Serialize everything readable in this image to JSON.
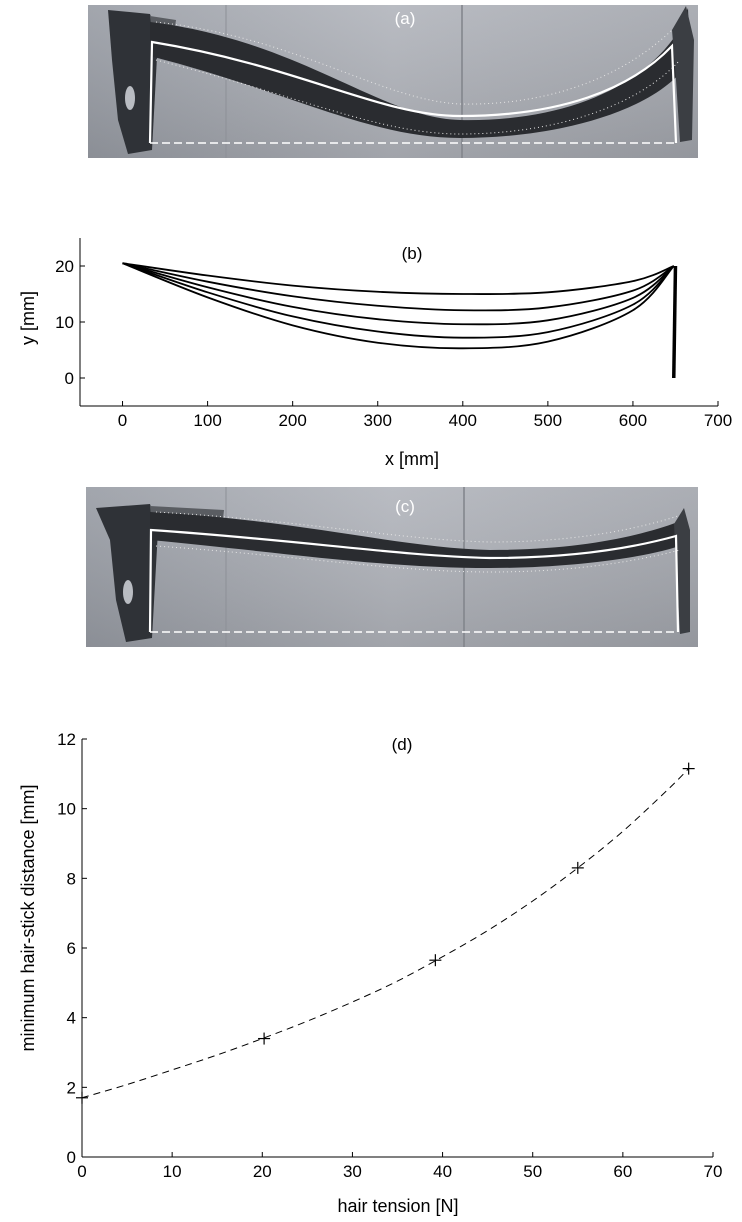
{
  "panels": {
    "a": {
      "label": "(a)"
    },
    "c": {
      "label": "(c)"
    }
  },
  "chart_data": [
    {
      "id": "b",
      "type": "line",
      "title": "(b)",
      "xlabel": "x [mm]",
      "ylabel": "y [mm]",
      "xlim": [
        -50,
        700
      ],
      "ylim": [
        -5,
        25
      ],
      "xticks": [
        0,
        100,
        200,
        300,
        400,
        500,
        600,
        700
      ],
      "yticks": [
        0,
        10,
        20
      ],
      "grid": false,
      "frog_segment": {
        "x": [
          650,
          648
        ],
        "y": [
          20,
          0
        ]
      },
      "series": [
        {
          "x": [
            0,
            100,
            200,
            300,
            400,
            500,
            600,
            648
          ],
          "y": [
            20.5,
            18.3,
            16.5,
            15.4,
            15.0,
            15.3,
            17.3,
            20.0
          ]
        },
        {
          "x": [
            0,
            100,
            200,
            300,
            400,
            500,
            600,
            648
          ],
          "y": [
            20.5,
            17.2,
            14.6,
            12.9,
            12.1,
            12.6,
            15.6,
            20.0
          ]
        },
        {
          "x": [
            0,
            100,
            200,
            300,
            400,
            500,
            600,
            648
          ],
          "y": [
            20.5,
            16.2,
            12.7,
            10.5,
            9.6,
            10.3,
            14.3,
            20.0
          ]
        },
        {
          "x": [
            0,
            100,
            200,
            300,
            400,
            500,
            600,
            648
          ],
          "y": [
            20.5,
            15.3,
            11.0,
            8.3,
            7.2,
            8.2,
            13.1,
            20.0
          ]
        },
        {
          "x": [
            0,
            100,
            200,
            300,
            400,
            500,
            600,
            648
          ],
          "y": [
            20.5,
            14.4,
            9.4,
            6.3,
            5.3,
            6.5,
            12.1,
            20.0
          ]
        }
      ]
    },
    {
      "id": "d",
      "type": "scatter",
      "title": "(d)",
      "xlabel": "hair tension [N]",
      "ylabel": "minimum hair-stick distance [mm]",
      "xlim": [
        0,
        70
      ],
      "ylim": [
        0,
        12
      ],
      "xticks": [
        0,
        10,
        20,
        30,
        40,
        50,
        60,
        70
      ],
      "yticks": [
        0,
        2,
        4,
        6,
        8,
        10,
        12
      ],
      "grid": false,
      "points": {
        "x": [
          0,
          20.2,
          39.2,
          55.0,
          67.3
        ],
        "y": [
          1.7,
          3.4,
          5.65,
          8.3,
          11.15
        ]
      },
      "fit_curve": {
        "x": [
          0,
          5,
          10,
          15,
          20,
          25,
          30,
          35,
          40,
          45,
          50,
          55,
          60,
          65,
          67.3
        ],
        "y": [
          1.7,
          2.08,
          2.5,
          2.93,
          3.4,
          3.9,
          4.45,
          5.05,
          5.75,
          6.5,
          7.35,
          8.3,
          9.35,
          10.55,
          11.15
        ]
      }
    }
  ]
}
